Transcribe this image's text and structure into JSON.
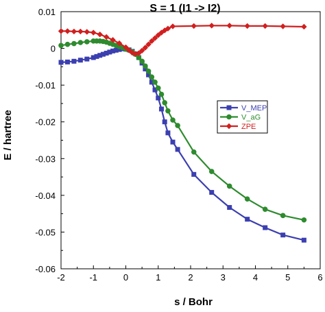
{
  "chart_data": {
    "type": "line",
    "title": "S = 1 (I1 -> I2)",
    "xlabel": "s / Bohr",
    "ylabel": "E / hartree",
    "xlim": [
      -2,
      6
    ],
    "ylim": [
      -0.06,
      0.01
    ],
    "xticks": [
      "-2",
      "-1",
      "0",
      "1",
      "2",
      "3",
      "4",
      "5",
      "6"
    ],
    "yticks": [
      "0.01",
      "0",
      "-0.01",
      "-0.02",
      "-0.03",
      "-0.04",
      "-0.05",
      "-0.06"
    ],
    "grid": false,
    "legend_position": "right",
    "series": [
      {
        "name": "V_MEP",
        "color": "#3b3fb0",
        "marker": "square",
        "x": [
          -2.0,
          -1.8,
          -1.6,
          -1.4,
          -1.2,
          -1.0,
          -0.9,
          -0.8,
          -0.7,
          -0.6,
          -0.5,
          -0.4,
          -0.3,
          -0.2,
          -0.1,
          0.0,
          0.1,
          0.2,
          0.3,
          0.4,
          0.5,
          0.6,
          0.7,
          0.8,
          0.9,
          1.0,
          1.1,
          1.2,
          1.3,
          1.45,
          1.6,
          2.1,
          2.65,
          3.2,
          3.75,
          4.3,
          4.85,
          5.5
        ],
        "y": [
          -0.0038,
          -0.0037,
          -0.0035,
          -0.0032,
          -0.0029,
          -0.0025,
          -0.0022,
          -0.0019,
          -0.0016,
          -0.0013,
          -0.001,
          -0.0007,
          -0.0005,
          -0.0003,
          -0.0001,
          -0.0002,
          -0.0004,
          -0.0008,
          -0.0015,
          -0.0025,
          -0.004,
          -0.0056,
          -0.0072,
          -0.0092,
          -0.0113,
          -0.0135,
          -0.0165,
          -0.02,
          -0.023,
          -0.0255,
          -0.0275,
          -0.0343,
          -0.0392,
          -0.0433,
          -0.0465,
          -0.0488,
          -0.0508,
          -0.0522
        ]
      },
      {
        "name": "V_aG",
        "color": "#2e8b2e",
        "marker": "circle",
        "x": [
          -2.0,
          -1.8,
          -1.6,
          -1.4,
          -1.2,
          -1.0,
          -0.9,
          -0.8,
          -0.7,
          -0.6,
          -0.5,
          -0.4,
          -0.3,
          -0.2,
          -0.1,
          0.0,
          0.1,
          0.2,
          0.3,
          0.4,
          0.5,
          0.6,
          0.7,
          0.8,
          0.9,
          1.0,
          1.1,
          1.2,
          1.3,
          1.45,
          1.6,
          2.1,
          2.65,
          3.2,
          3.75,
          4.3,
          4.85,
          5.5
        ],
        "y": [
          0.0008,
          0.0011,
          0.0013,
          0.0016,
          0.0018,
          0.002,
          0.002,
          0.002,
          0.0019,
          0.0017,
          0.0014,
          0.0011,
          0.0008,
          0.0005,
          0.0002,
          -0.0002,
          -0.0005,
          -0.0009,
          -0.0016,
          -0.0025,
          -0.0035,
          -0.0048,
          -0.0062,
          -0.0078,
          -0.0092,
          -0.0108,
          -0.0125,
          -0.0148,
          -0.017,
          -0.0195,
          -0.021,
          -0.0282,
          -0.0335,
          -0.0375,
          -0.041,
          -0.0438,
          -0.0455,
          -0.0467
        ]
      },
      {
        "name": "ZPE",
        "color": "#d11f1f",
        "marker": "diamond",
        "x": [
          -2.0,
          -1.8,
          -1.6,
          -1.4,
          -1.2,
          -1.0,
          -0.8,
          -0.6,
          -0.4,
          -0.2,
          0.0,
          0.1,
          0.2,
          0.3,
          0.4,
          0.5,
          0.6,
          0.7,
          0.8,
          0.9,
          1.0,
          1.1,
          1.2,
          1.3,
          1.45,
          2.1,
          2.65,
          3.2,
          3.75,
          4.3,
          4.85,
          5.5
        ],
        "y": [
          0.0047,
          0.0047,
          0.0046,
          0.0046,
          0.0045,
          0.0043,
          0.0038,
          0.0031,
          0.0023,
          0.0014,
          0.0003,
          -0.0005,
          -0.0012,
          -0.0015,
          -0.0013,
          -0.0006,
          0.0002,
          0.0011,
          0.002,
          0.0028,
          0.0036,
          0.0043,
          0.0049,
          0.0054,
          0.006,
          0.0061,
          0.0062,
          0.0062,
          0.0061,
          0.0061,
          0.006,
          0.0059
        ]
      }
    ]
  }
}
